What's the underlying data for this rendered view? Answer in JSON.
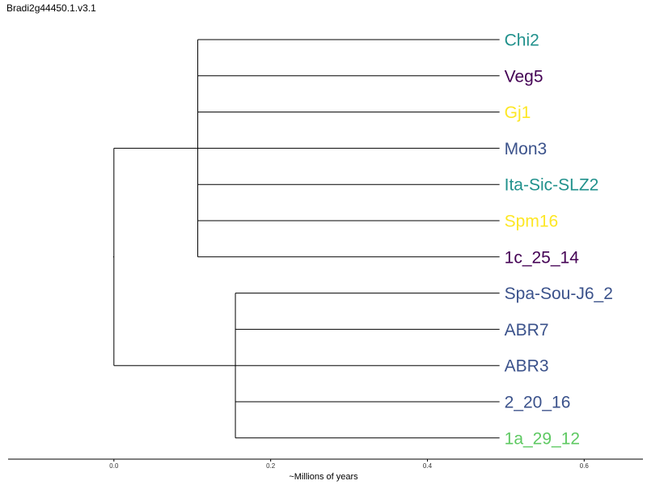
{
  "title": "Bradi2g44450.1.v3.1",
  "axis": {
    "label": "~Millions of years",
    "ticks": [
      0.0,
      0.2,
      0.4,
      0.6
    ],
    "tick_labels": [
      "0.0",
      "0.2",
      "0.4",
      "0.6"
    ],
    "range": [
      -0.135,
      0.675
    ]
  },
  "tree": {
    "root_x": 0.0,
    "clades": [
      {
        "node_x": 0.107,
        "leaf_x": 0.492,
        "leaves": [
          {
            "name": "Chi2",
            "color": "#21918c"
          },
          {
            "name": "Veg5",
            "color": "#440154"
          },
          {
            "name": "Gj1",
            "color": "#fde725"
          },
          {
            "name": "Mon3",
            "color": "#3b528b"
          },
          {
            "name": "Ita-Sic-SLZ2",
            "color": "#21918c"
          },
          {
            "name": "Spm16",
            "color": "#fde725"
          },
          {
            "name": "1c_25_14",
            "color": "#440154"
          }
        ]
      },
      {
        "node_x": 0.155,
        "leaf_x": 0.492,
        "leaves": [
          {
            "name": "Spa-Sou-J6_2",
            "color": "#3b528b"
          },
          {
            "name": "ABR7",
            "color": "#3b528b"
          },
          {
            "name": "ABR3",
            "color": "#3b528b"
          },
          {
            "name": "2_20_16",
            "color": "#3b528b"
          },
          {
            "name": "1a_29_12",
            "color": "#5ec962"
          }
        ]
      }
    ]
  }
}
